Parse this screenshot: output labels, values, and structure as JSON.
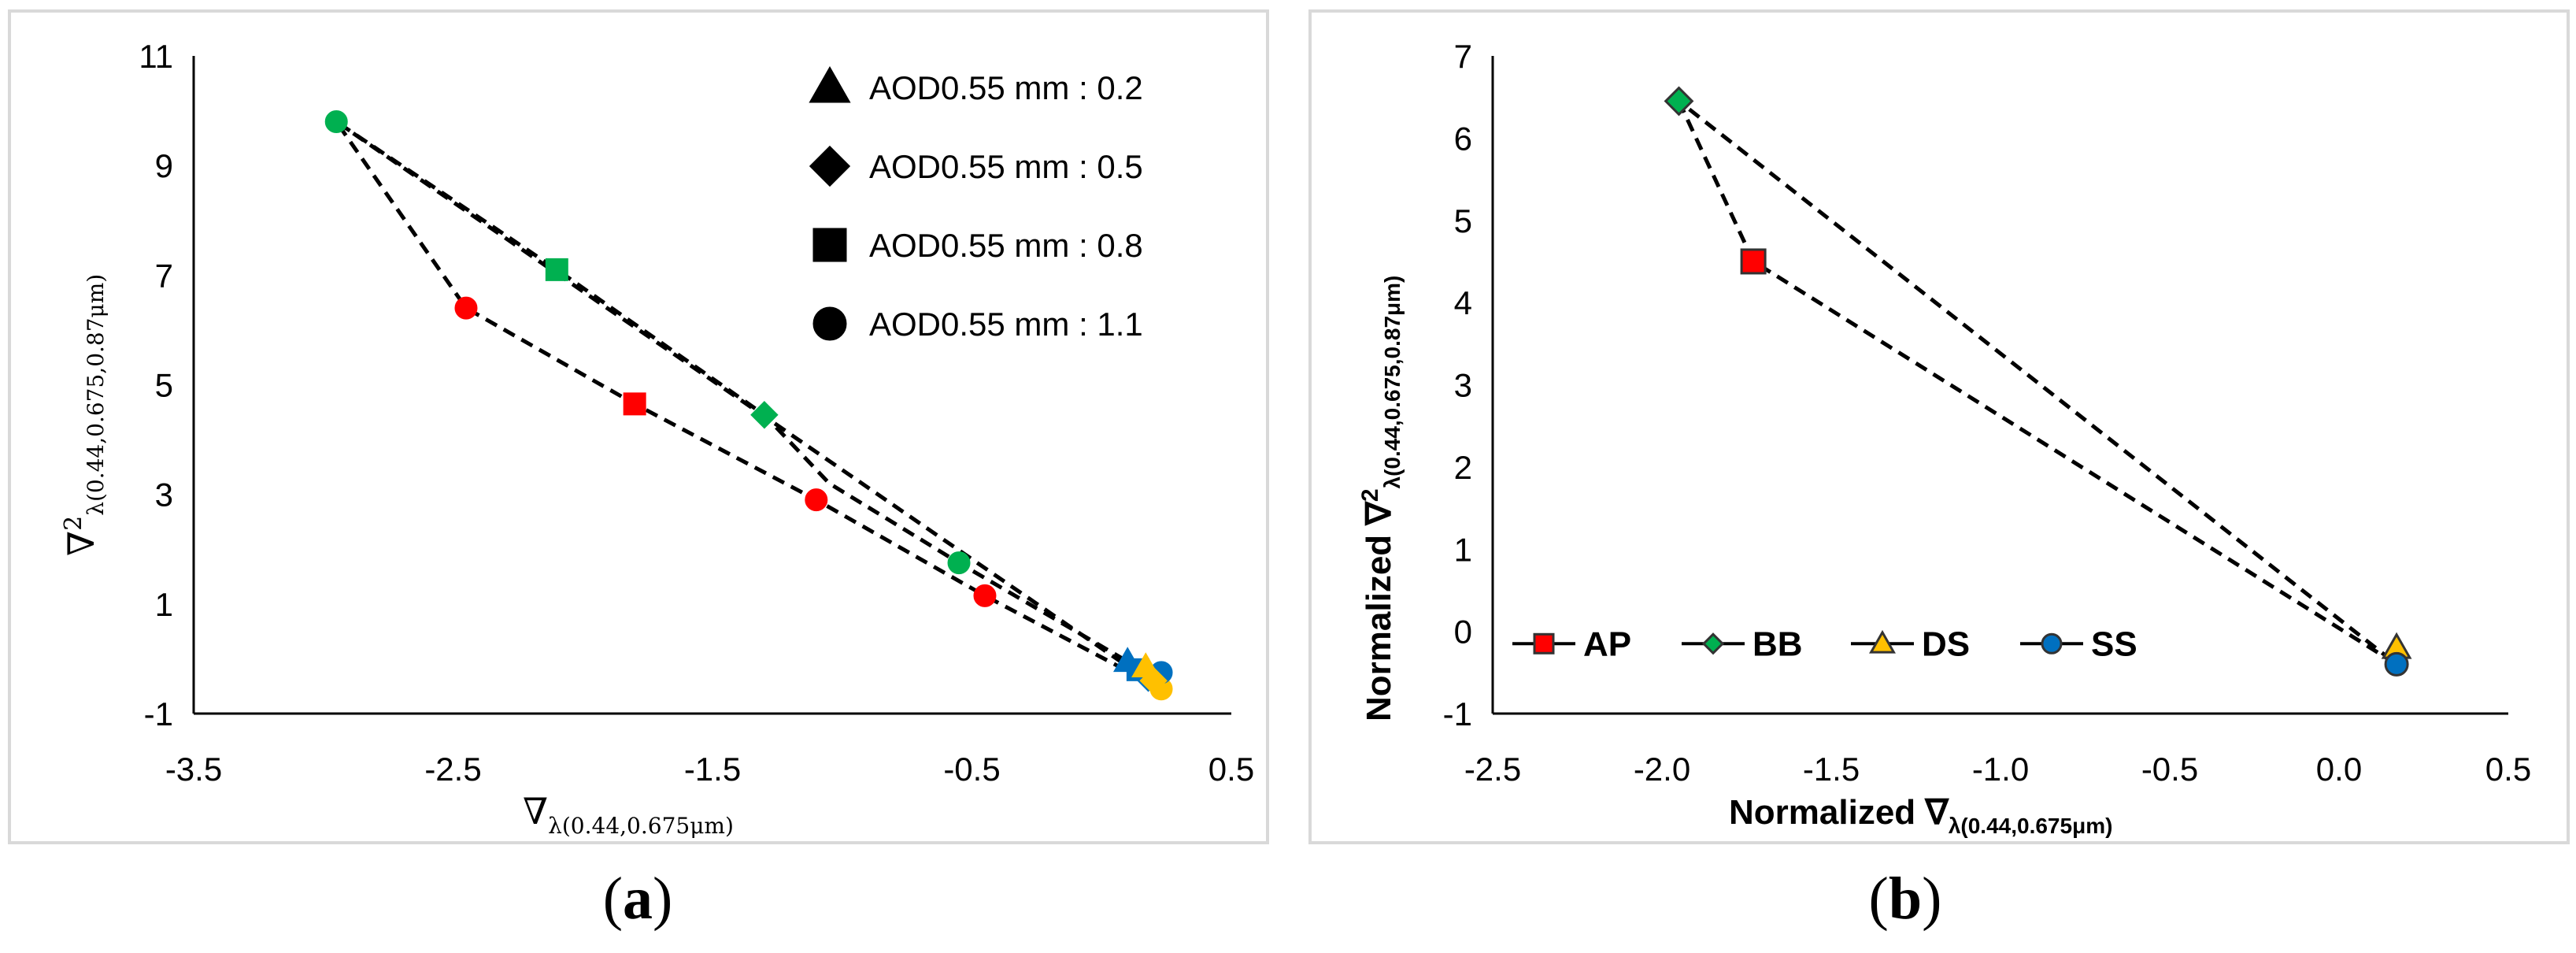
{
  "chart_data": [
    {
      "id": "a",
      "type": "scatter",
      "caption_open": "(",
      "caption_letter": "a",
      "caption_close": ")",
      "title": "",
      "xlabel": "∇",
      "xlabel_sub": "λ(0.44,0.675μm)",
      "ylabel": "∇",
      "ylabel_sup": "2",
      "ylabel_sub": "λ(0.44,0.675,0.87μm)",
      "xlim": [
        -3.5,
        0.5
      ],
      "ylim": [
        -1,
        11
      ],
      "xticks": [
        "-3.5",
        "-2.5",
        "-1.5",
        "-0.5",
        "0.5"
      ],
      "yticks": [
        "-1",
        "1",
        "3",
        "5",
        "7",
        "9",
        "11"
      ],
      "grid": false,
      "legend_position": "top-right",
      "legend": [
        {
          "label": "AOD0.55 mm : 0.2",
          "marker": "triangle"
        },
        {
          "label": "AOD0.55 mm : 0.5",
          "marker": "diamond"
        },
        {
          "label": "AOD0.55 mm : 0.8",
          "marker": "square"
        },
        {
          "label": "AOD0.55 mm : 1.1",
          "marker": "circle"
        }
      ],
      "series": [
        {
          "color": "#ff0000",
          "line": "dashed",
          "points": [
            {
              "x": 0.23,
              "y": -0.55,
              "marker": "circle",
              "color": "#ffc000"
            },
            {
              "x": -0.45,
              "y": 1.15,
              "marker": "circle"
            },
            {
              "x": -1.1,
              "y": 2.9,
              "marker": "circle"
            },
            {
              "x": -1.8,
              "y": 4.65,
              "marker": "square"
            },
            {
              "x": -2.45,
              "y": 6.4,
              "marker": "circle"
            },
            {
              "x": -2.95,
              "y": 9.8,
              "marker": "circle",
              "color": "#00b050"
            },
            {
              "x": -2.1,
              "y": 7.1,
              "marker": "square",
              "color": "#00b050"
            },
            {
              "x": -1.3,
              "y": 4.45,
              "marker": "diamond",
              "color": "#00b050"
            },
            {
              "x": -1.05,
              "y": 3.2
            },
            {
              "x": -0.55,
              "y": 1.75,
              "marker": "circle",
              "color": "#00b050"
            },
            {
              "x": 0.1,
              "y": -0.05,
              "marker": "triangle",
              "color": "#0070c0"
            }
          ]
        },
        {
          "color": "#000000",
          "line": "dashed",
          "points": [
            {
              "x": -2.95,
              "y": 9.8
            },
            {
              "x": 0.15,
              "y": -0.3
            }
          ]
        },
        {
          "color": "#0070c0",
          "line": "none",
          "points": [
            {
              "x": 0.18,
              "y": -0.35,
              "marker": "diamond"
            },
            {
              "x": 0.23,
              "y": -0.25,
              "marker": "circle"
            },
            {
              "x": 0.14,
              "y": -0.2,
              "marker": "square"
            }
          ]
        },
        {
          "color": "#ffc000",
          "line": "none",
          "points": [
            {
              "x": 0.17,
              "y": -0.15,
              "marker": "triangle"
            },
            {
              "x": 0.2,
              "y": -0.4,
              "marker": "diamond"
            }
          ]
        }
      ]
    },
    {
      "id": "b",
      "type": "line",
      "caption_open": "(",
      "caption_letter": "b",
      "caption_close": ")",
      "title": "",
      "xlabel": "Normalized ∇",
      "xlabel_sub": "λ(0.44,0.675μm)",
      "ylabel": "Normalized ∇",
      "ylabel_sup": "2",
      "ylabel_sub": "λ(0.44,0.675,0.87μm)",
      "xlim": [
        -2.5,
        0.5
      ],
      "ylim": [
        -1,
        7
      ],
      "xticks": [
        "-2.5",
        "-2.0",
        "-1.5",
        "-1.0",
        "-0.5",
        "0.0",
        "0.5"
      ],
      "yticks": [
        "-1",
        "0",
        "1",
        "2",
        "3",
        "4",
        "5",
        "6",
        "7"
      ],
      "grid": false,
      "legend_position": "left",
      "series": [
        {
          "name": "AP",
          "color": "#ff0000",
          "marker": "square",
          "points": [
            {
              "x": -1.73,
              "y": 4.5
            }
          ]
        },
        {
          "name": "BB",
          "color": "#00b050",
          "marker": "diamond",
          "points": [
            {
              "x": -1.95,
              "y": 6.45
            }
          ]
        },
        {
          "name": "DS",
          "color": "#ffc000",
          "marker": "triangle",
          "points": [
            {
              "x": 0.17,
              "y": -0.2
            }
          ]
        },
        {
          "name": "SS",
          "color": "#0070c0",
          "marker": "circle",
          "points": [
            {
              "x": 0.17,
              "y": -0.4
            }
          ]
        }
      ],
      "connector": {
        "color": "#000000",
        "line": "dashed",
        "points": [
          {
            "x": -1.95,
            "y": 6.45
          },
          {
            "x": -1.73,
            "y": 4.5
          },
          {
            "x": 0.17,
            "y": -0.4
          },
          {
            "x": -1.95,
            "y": 6.45
          }
        ]
      }
    }
  ]
}
